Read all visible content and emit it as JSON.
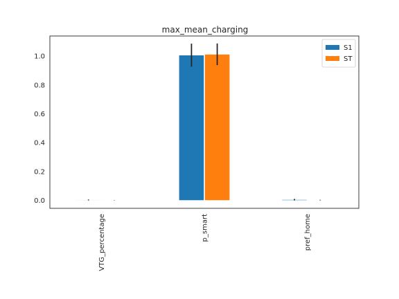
{
  "chart_data": {
    "type": "bar",
    "title": "max_mean_charging",
    "xlabel": "",
    "ylabel": "",
    "categories": [
      "VTG_percentage",
      "p_smart",
      "pref_home"
    ],
    "series": [
      {
        "name": "S1",
        "color": "#1f77b4",
        "values": [
          0.003,
          1.007,
          0.005
        ],
        "error": [
          0.003,
          0.08,
          0.005
        ]
      },
      {
        "name": "ST",
        "color": "#ff7f0e",
        "values": [
          0.001,
          1.013,
          0.002
        ],
        "error": [
          0.001,
          0.075,
          0.002
        ]
      }
    ],
    "ylim": [
      -0.055,
      1.14
    ],
    "yticks": [
      0.0,
      0.2,
      0.4,
      0.6,
      0.8,
      1.0
    ],
    "ytick_labels": [
      "0.0",
      "0.2",
      "0.4",
      "0.6",
      "0.8",
      "1.0"
    ],
    "grid": false,
    "legend_position": "top-right"
  }
}
